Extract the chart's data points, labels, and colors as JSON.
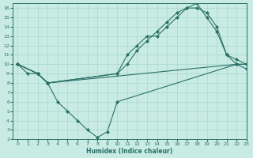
{
  "xlabel": "Humidex (Indice chaleur)",
  "bg_color": "#c8ebe3",
  "grid_color": "#a8d8d0",
  "line_color": "#2a7068",
  "xlim": [
    -0.5,
    23
  ],
  "ylim": [
    2,
    16.5
  ],
  "xticks": [
    0,
    1,
    2,
    3,
    4,
    5,
    6,
    7,
    8,
    9,
    10,
    11,
    12,
    13,
    14,
    15,
    16,
    17,
    18,
    19,
    20,
    21,
    22,
    23
  ],
  "yticks": [
    2,
    3,
    4,
    5,
    6,
    7,
    8,
    9,
    10,
    11,
    12,
    13,
    14,
    15,
    16
  ],
  "lines": [
    {
      "x": [
        0,
        1,
        2,
        3,
        22,
        23
      ],
      "y": [
        10,
        9,
        9,
        8,
        10,
        10
      ]
    },
    {
      "x": [
        0,
        2,
        3,
        4,
        5,
        6,
        7,
        8,
        9,
        10,
        22,
        23
      ],
      "y": [
        10,
        9,
        8,
        6,
        5,
        4,
        3,
        2.2,
        2.8,
        6,
        10,
        10
      ]
    },
    {
      "x": [
        0,
        2,
        3,
        10,
        11,
        12,
        13,
        14,
        15,
        16,
        17,
        18,
        19,
        20,
        21,
        22,
        23
      ],
      "y": [
        10,
        9,
        8,
        9,
        11,
        12,
        13,
        13,
        14,
        15,
        16,
        16.5,
        15,
        13.5,
        11,
        10.5,
        10
      ]
    },
    {
      "x": [
        0,
        2,
        3,
        10,
        11,
        12,
        13,
        14,
        15,
        16,
        17,
        18,
        19,
        20,
        21,
        22,
        23
      ],
      "y": [
        10,
        9,
        8,
        9,
        10,
        11.5,
        12.5,
        13.5,
        14.5,
        15.5,
        16,
        16,
        15.5,
        14,
        11,
        10,
        9.5
      ]
    }
  ]
}
